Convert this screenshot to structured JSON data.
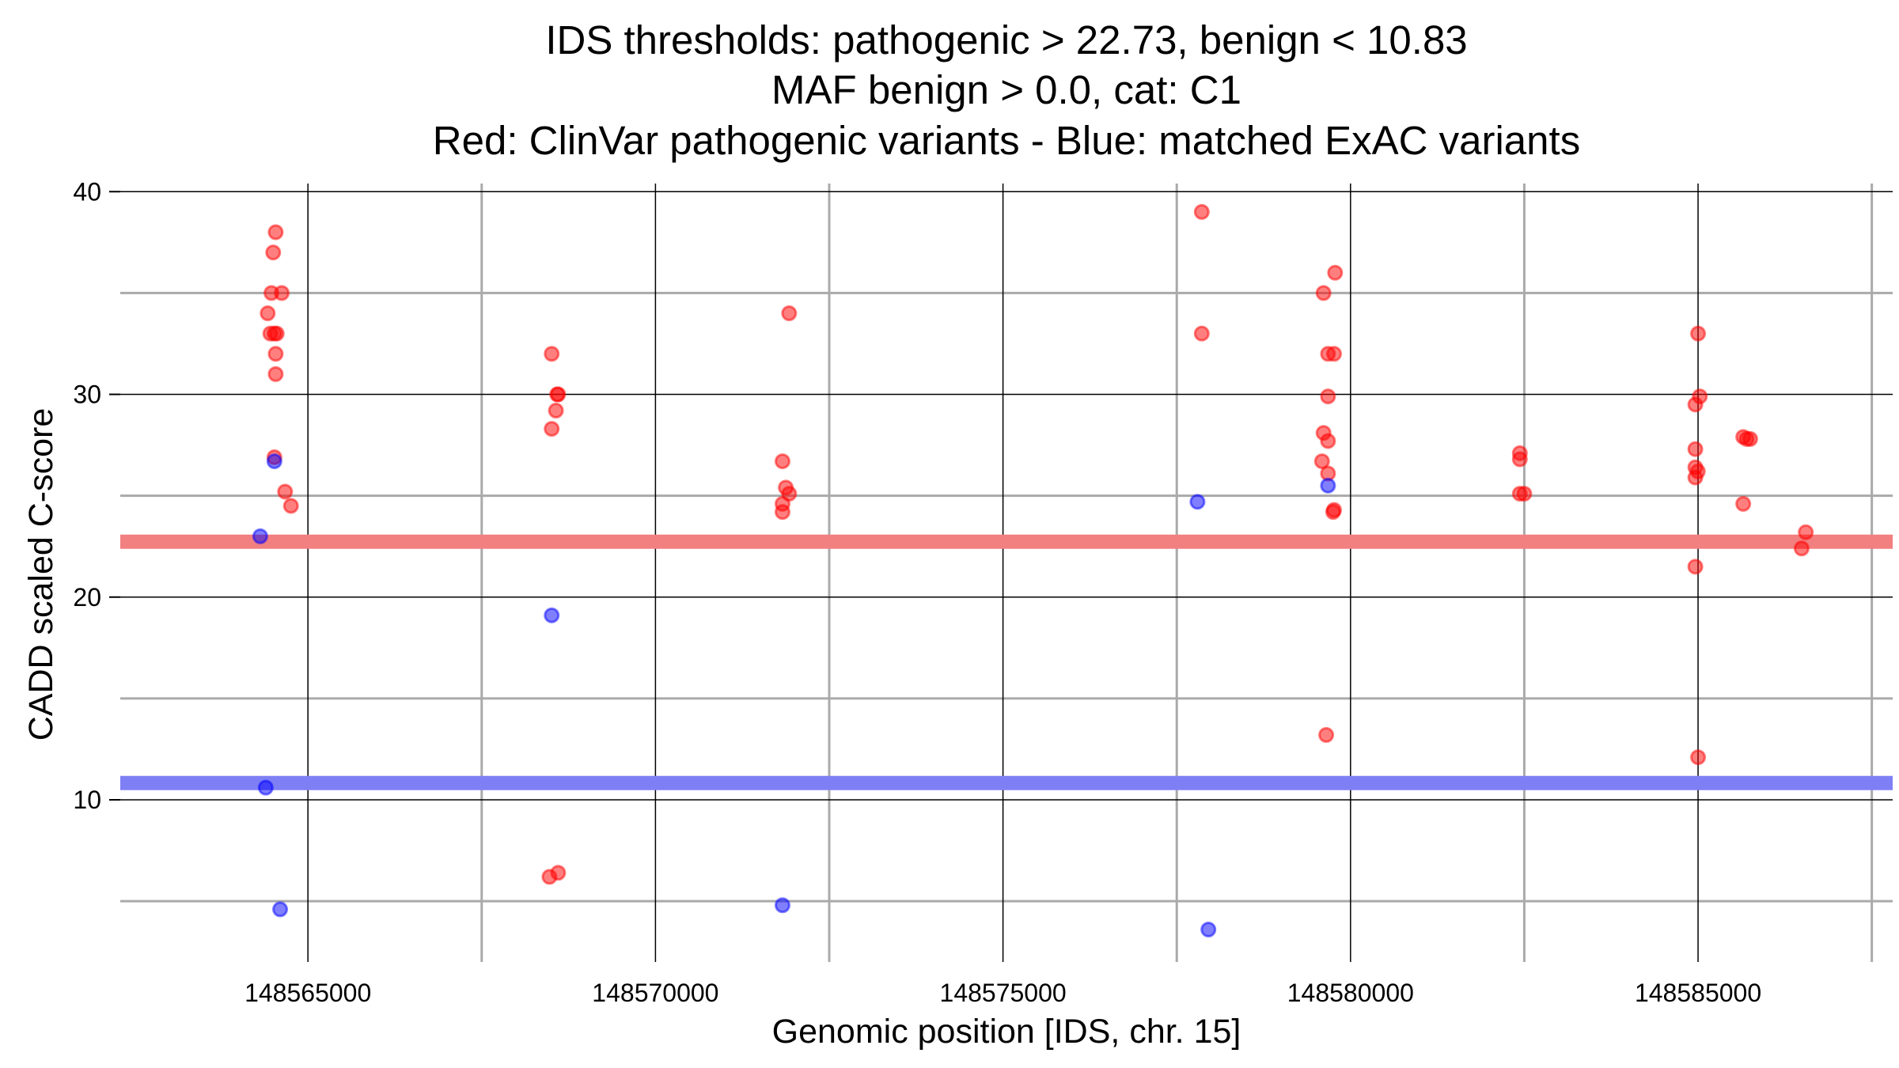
{
  "chart_data": {
    "type": "scatter",
    "title": [
      "IDS thresholds: pathogenic > 22.73, benign < 10.83",
      "MAF benign > 0.0, cat: C1",
      "Red: ClinVar pathogenic variants - Blue: matched ExAC variants"
    ],
    "xlabel": "Genomic position [IDS, chr. 15]",
    "ylabel": "CADD scaled C-score",
    "xlim": [
      148562300,
      148587800
    ],
    "ylim": [
      2,
      40.4
    ],
    "x_ticks": [
      148565000,
      148570000,
      148575000,
      148580000,
      148585000
    ],
    "y_ticks": [
      10,
      20,
      30,
      40
    ],
    "x_minor_grid": [
      148567500,
      148572500,
      148577500,
      148582500,
      148587500
    ],
    "y_minor_grid": [
      5,
      15,
      25,
      35
    ],
    "colors": {
      "pathogenic": "#ff0000",
      "benign": "#0000ff",
      "pathogenic_threshold": "#f28080",
      "benign_threshold": "#7f7ff5"
    },
    "thresholds": [
      {
        "name": "pathogenic",
        "value": 22.73
      },
      {
        "name": "benign",
        "value": 10.83
      }
    ],
    "series": [
      {
        "name": "ClinVar pathogenic variants",
        "color": "#ff0000",
        "points": [
          [
            148564536,
            38.0
          ],
          [
            148564500,
            37.0
          ],
          [
            148564475,
            35.0
          ],
          [
            148564623,
            35.0
          ],
          [
            148564421,
            34.0
          ],
          [
            148564459,
            33.0
          ],
          [
            148564518,
            33.0
          ],
          [
            148564551,
            33.0
          ],
          [
            148564536,
            32.0
          ],
          [
            148564536,
            31.0
          ],
          [
            148564518,
            26.9
          ],
          [
            148564671,
            25.2
          ],
          [
            148564756,
            24.5
          ],
          [
            148568507,
            32.0
          ],
          [
            148568586,
            30.0
          ],
          [
            148568600,
            30.0
          ],
          [
            148568507,
            28.3
          ],
          [
            148568568,
            29.2
          ],
          [
            148568475,
            6.2
          ],
          [
            148568600,
            6.4
          ],
          [
            148571923,
            34.0
          ],
          [
            148571828,
            26.7
          ],
          [
            148571875,
            25.4
          ],
          [
            148571923,
            25.1
          ],
          [
            148571828,
            24.6
          ],
          [
            148571828,
            24.2
          ],
          [
            148577860,
            39.0
          ],
          [
            148577860,
            33.0
          ],
          [
            148579612,
            35.0
          ],
          [
            148579778,
            36.0
          ],
          [
            148579676,
            32.0
          ],
          [
            148579763,
            32.0
          ],
          [
            148579676,
            29.9
          ],
          [
            148579612,
            28.1
          ],
          [
            148579676,
            27.7
          ],
          [
            148579590,
            26.7
          ],
          [
            148579676,
            26.1
          ],
          [
            148579763,
            24.3
          ],
          [
            148579750,
            24.2
          ],
          [
            148579650,
            13.2
          ],
          [
            148582436,
            27.1
          ],
          [
            148582436,
            26.8
          ],
          [
            148582436,
            25.1
          ],
          [
            148582500,
            25.1
          ],
          [
            148584961,
            29.5
          ],
          [
            148585000,
            33.0
          ],
          [
            148585025,
            29.9
          ],
          [
            148584961,
            27.3
          ],
          [
            148584961,
            26.4
          ],
          [
            148584997,
            26.2
          ],
          [
            148584961,
            25.9
          ],
          [
            148584961,
            21.5
          ],
          [
            148585000,
            12.1
          ],
          [
            148585650,
            27.9
          ],
          [
            148585700,
            27.8
          ],
          [
            148585750,
            27.8
          ],
          [
            148585650,
            24.6
          ],
          [
            148586550,
            23.2
          ],
          [
            148586490,
            22.4
          ]
        ]
      },
      {
        "name": "matched ExAC variants",
        "color": "#0000ff",
        "points": [
          [
            148564518,
            26.7
          ],
          [
            148564314,
            23.0
          ],
          [
            148564393,
            10.6
          ],
          [
            148564600,
            4.6
          ],
          [
            148568507,
            19.1
          ],
          [
            148571828,
            4.8
          ],
          [
            148577798,
            24.7
          ],
          [
            148577955,
            3.6
          ],
          [
            148579676,
            25.5
          ]
        ]
      }
    ]
  }
}
